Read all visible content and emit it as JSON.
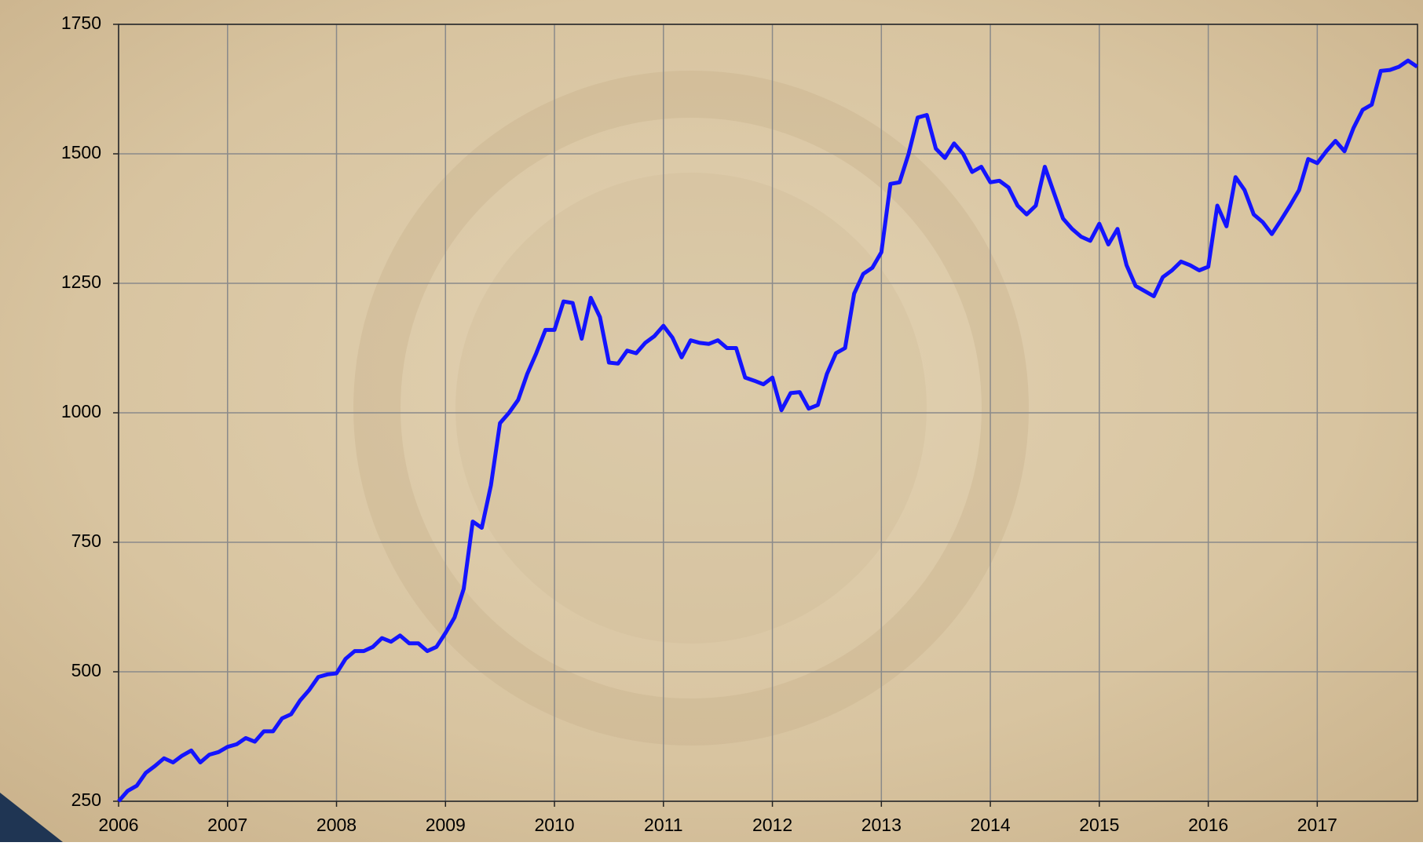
{
  "chart_data": {
    "type": "line",
    "x": [
      2006,
      2006.083,
      2006.167,
      2006.25,
      2006.333,
      2006.417,
      2006.5,
      2006.583,
      2006.667,
      2006.75,
      2006.833,
      2006.917,
      2007,
      2007.083,
      2007.167,
      2007.25,
      2007.333,
      2007.417,
      2007.5,
      2007.583,
      2007.667,
      2007.75,
      2007.833,
      2007.917,
      2008,
      2008.083,
      2008.167,
      2008.25,
      2008.333,
      2008.417,
      2008.5,
      2008.583,
      2008.667,
      2008.75,
      2008.833,
      2008.917,
      2009,
      2009.083,
      2009.167,
      2009.25,
      2009.333,
      2009.417,
      2009.5,
      2009.583,
      2009.667,
      2009.75,
      2009.833,
      2009.917,
      2010,
      2010.083,
      2010.167,
      2010.25,
      2010.333,
      2010.417,
      2010.5,
      2010.583,
      2010.667,
      2010.75,
      2010.833,
      2010.917,
      2011,
      2011.083,
      2011.167,
      2011.25,
      2011.333,
      2011.417,
      2011.5,
      2011.583,
      2011.667,
      2011.75,
      2011.833,
      2011.917,
      2012,
      2012.083,
      2012.167,
      2012.25,
      2012.333,
      2012.417,
      2012.5,
      2012.583,
      2012.667,
      2012.75,
      2012.833,
      2012.917,
      2013,
      2013.083,
      2013.167,
      2013.25,
      2013.333,
      2013.417,
      2013.5,
      2013.583,
      2013.667,
      2013.75,
      2013.833,
      2013.917,
      2014,
      2014.083,
      2014.167,
      2014.25,
      2014.333,
      2014.417,
      2014.5,
      2014.583,
      2014.667,
      2014.75,
      2014.833,
      2014.917,
      2015,
      2015.083,
      2015.167,
      2015.25,
      2015.333,
      2015.417,
      2015.5,
      2015.583,
      2015.667,
      2015.75,
      2015.833,
      2015.917,
      2016,
      2016.083,
      2016.167,
      2016.25,
      2016.333,
      2016.417,
      2016.5,
      2016.583,
      2016.667,
      2016.75,
      2016.833,
      2016.917,
      2017,
      2017.083,
      2017.167,
      2017.25,
      2017.333,
      2017.417,
      2017.5,
      2017.583,
      2017.667,
      2017.75,
      2017.833,
      2017.917
    ],
    "series": [
      {
        "color": "#1414ff",
        "values": [
          250,
          270,
          280,
          305,
          318,
          333,
          325,
          338,
          348,
          325,
          340,
          345,
          355,
          360,
          372,
          365,
          385,
          385,
          410,
          418,
          445,
          465,
          490,
          495,
          497,
          525,
          540,
          540,
          548,
          565,
          558,
          570,
          555,
          555,
          540,
          548,
          575,
          605,
          660,
          790,
          778,
          860,
          980,
          1000,
          1025,
          1075,
          1115,
          1160,
          1160,
          1215,
          1212,
          1143,
          1222,
          1185,
          1097,
          1095,
          1120,
          1115,
          1135,
          1148,
          1168,
          1145,
          1107,
          1140,
          1135,
          1133,
          1140,
          1125,
          1125,
          1068,
          1062,
          1055,
          1068,
          1005,
          1038,
          1040,
          1008,
          1015,
          1075,
          1115,
          1125,
          1230,
          1268,
          1280,
          1310,
          1442,
          1445,
          1500,
          1570,
          1575,
          1510,
          1492,
          1520,
          1500,
          1465,
          1475,
          1445,
          1448,
          1435,
          1400,
          1383,
          1400,
          1475,
          1425,
          1375,
          1355,
          1340,
          1332,
          1365,
          1325,
          1355,
          1285,
          1245,
          1235,
          1225,
          1262,
          1275,
          1292,
          1285,
          1275,
          1282,
          1400,
          1360,
          1455,
          1430,
          1383,
          1368,
          1345,
          1372,
          1400,
          1430,
          1490,
          1482,
          1505,
          1525,
          1505,
          1550,
          1585,
          1595,
          1660,
          1662,
          1668,
          1680,
          1668
        ]
      }
    ],
    "xlim": [
      2006,
      2017.92
    ],
    "xticks": [
      2006,
      2007,
      2008,
      2009,
      2010,
      2011,
      2012,
      2013,
      2014,
      2015,
      2016,
      2017
    ],
    "ylim": [
      250,
      1750
    ],
    "yticks": [
      250,
      500,
      750,
      1000,
      1250,
      1500,
      1750
    ],
    "grid": true
  }
}
